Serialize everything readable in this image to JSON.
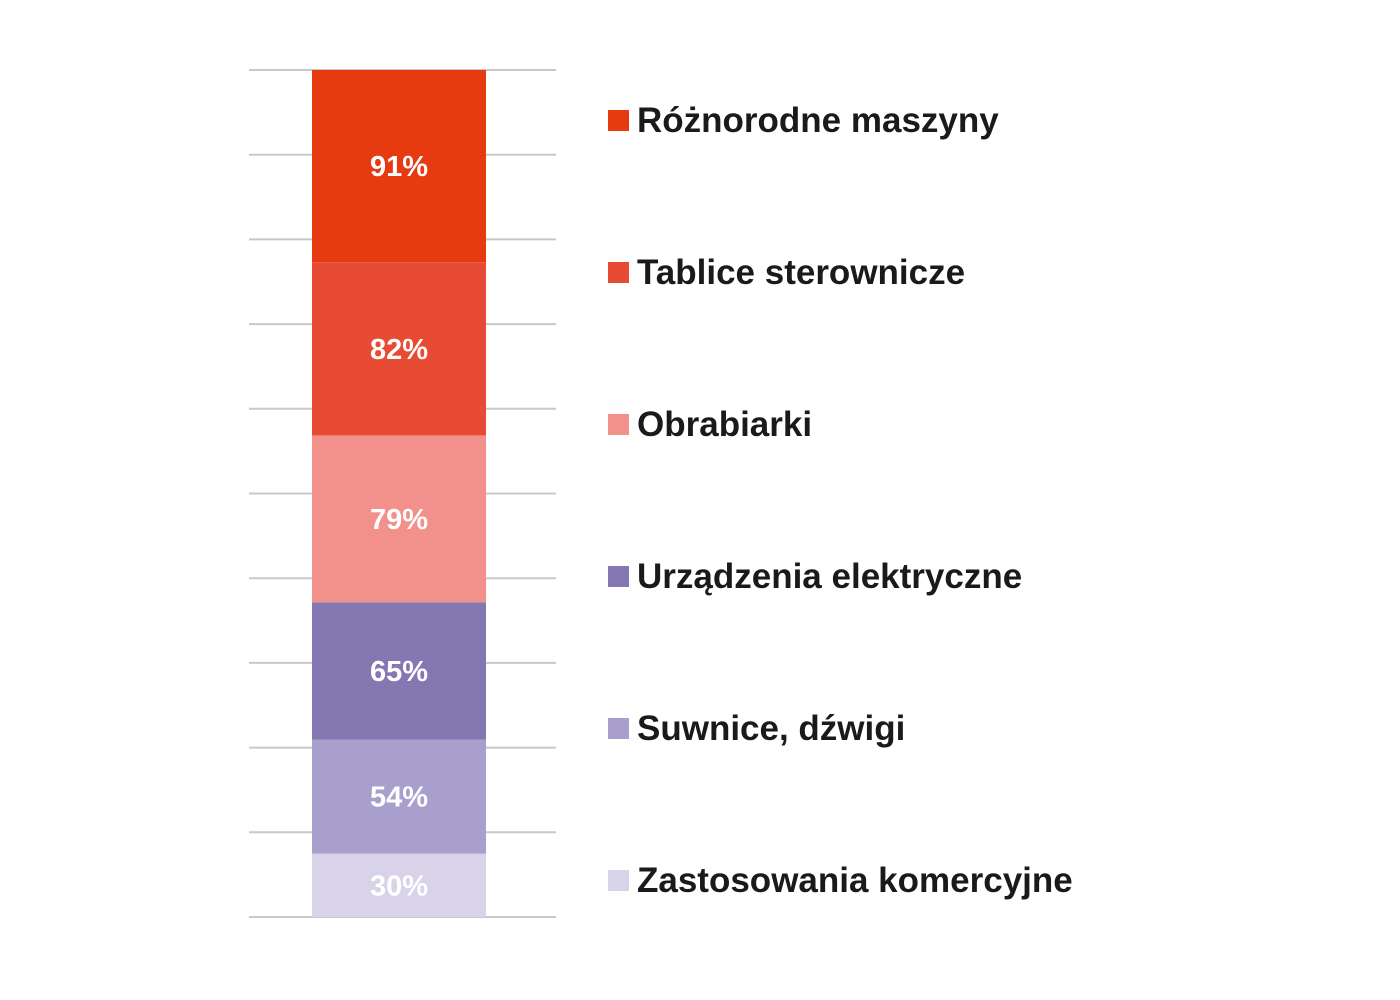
{
  "chart_data": {
    "type": "bar",
    "stacked": true,
    "title": "",
    "xlabel": "",
    "ylabel": "",
    "ylim": [
      0,
      100
    ],
    "grid": true,
    "legend_position": "right",
    "series": [
      {
        "name": "Zastosowania komercyjne",
        "value": 30,
        "label": "30%",
        "color": "#d9d3ea"
      },
      {
        "name": "Suwnice, dźwigi",
        "value": 54,
        "label": "54%",
        "color": "#a99fcc"
      },
      {
        "name": "Urządzenia elektryczne",
        "value": 65,
        "label": "65%",
        "color": "#8577b2"
      },
      {
        "name": "Obrabiarki",
        "value": 79,
        "label": "79%",
        "color": "#f2908b"
      },
      {
        "name": "Tablice sterownicze",
        "value": 82,
        "label": "82%",
        "color": "#e84b33"
      },
      {
        "name": "Różnorodne maszyny",
        "value": 91,
        "label": "91%",
        "color": "#e63a10"
      }
    ]
  }
}
